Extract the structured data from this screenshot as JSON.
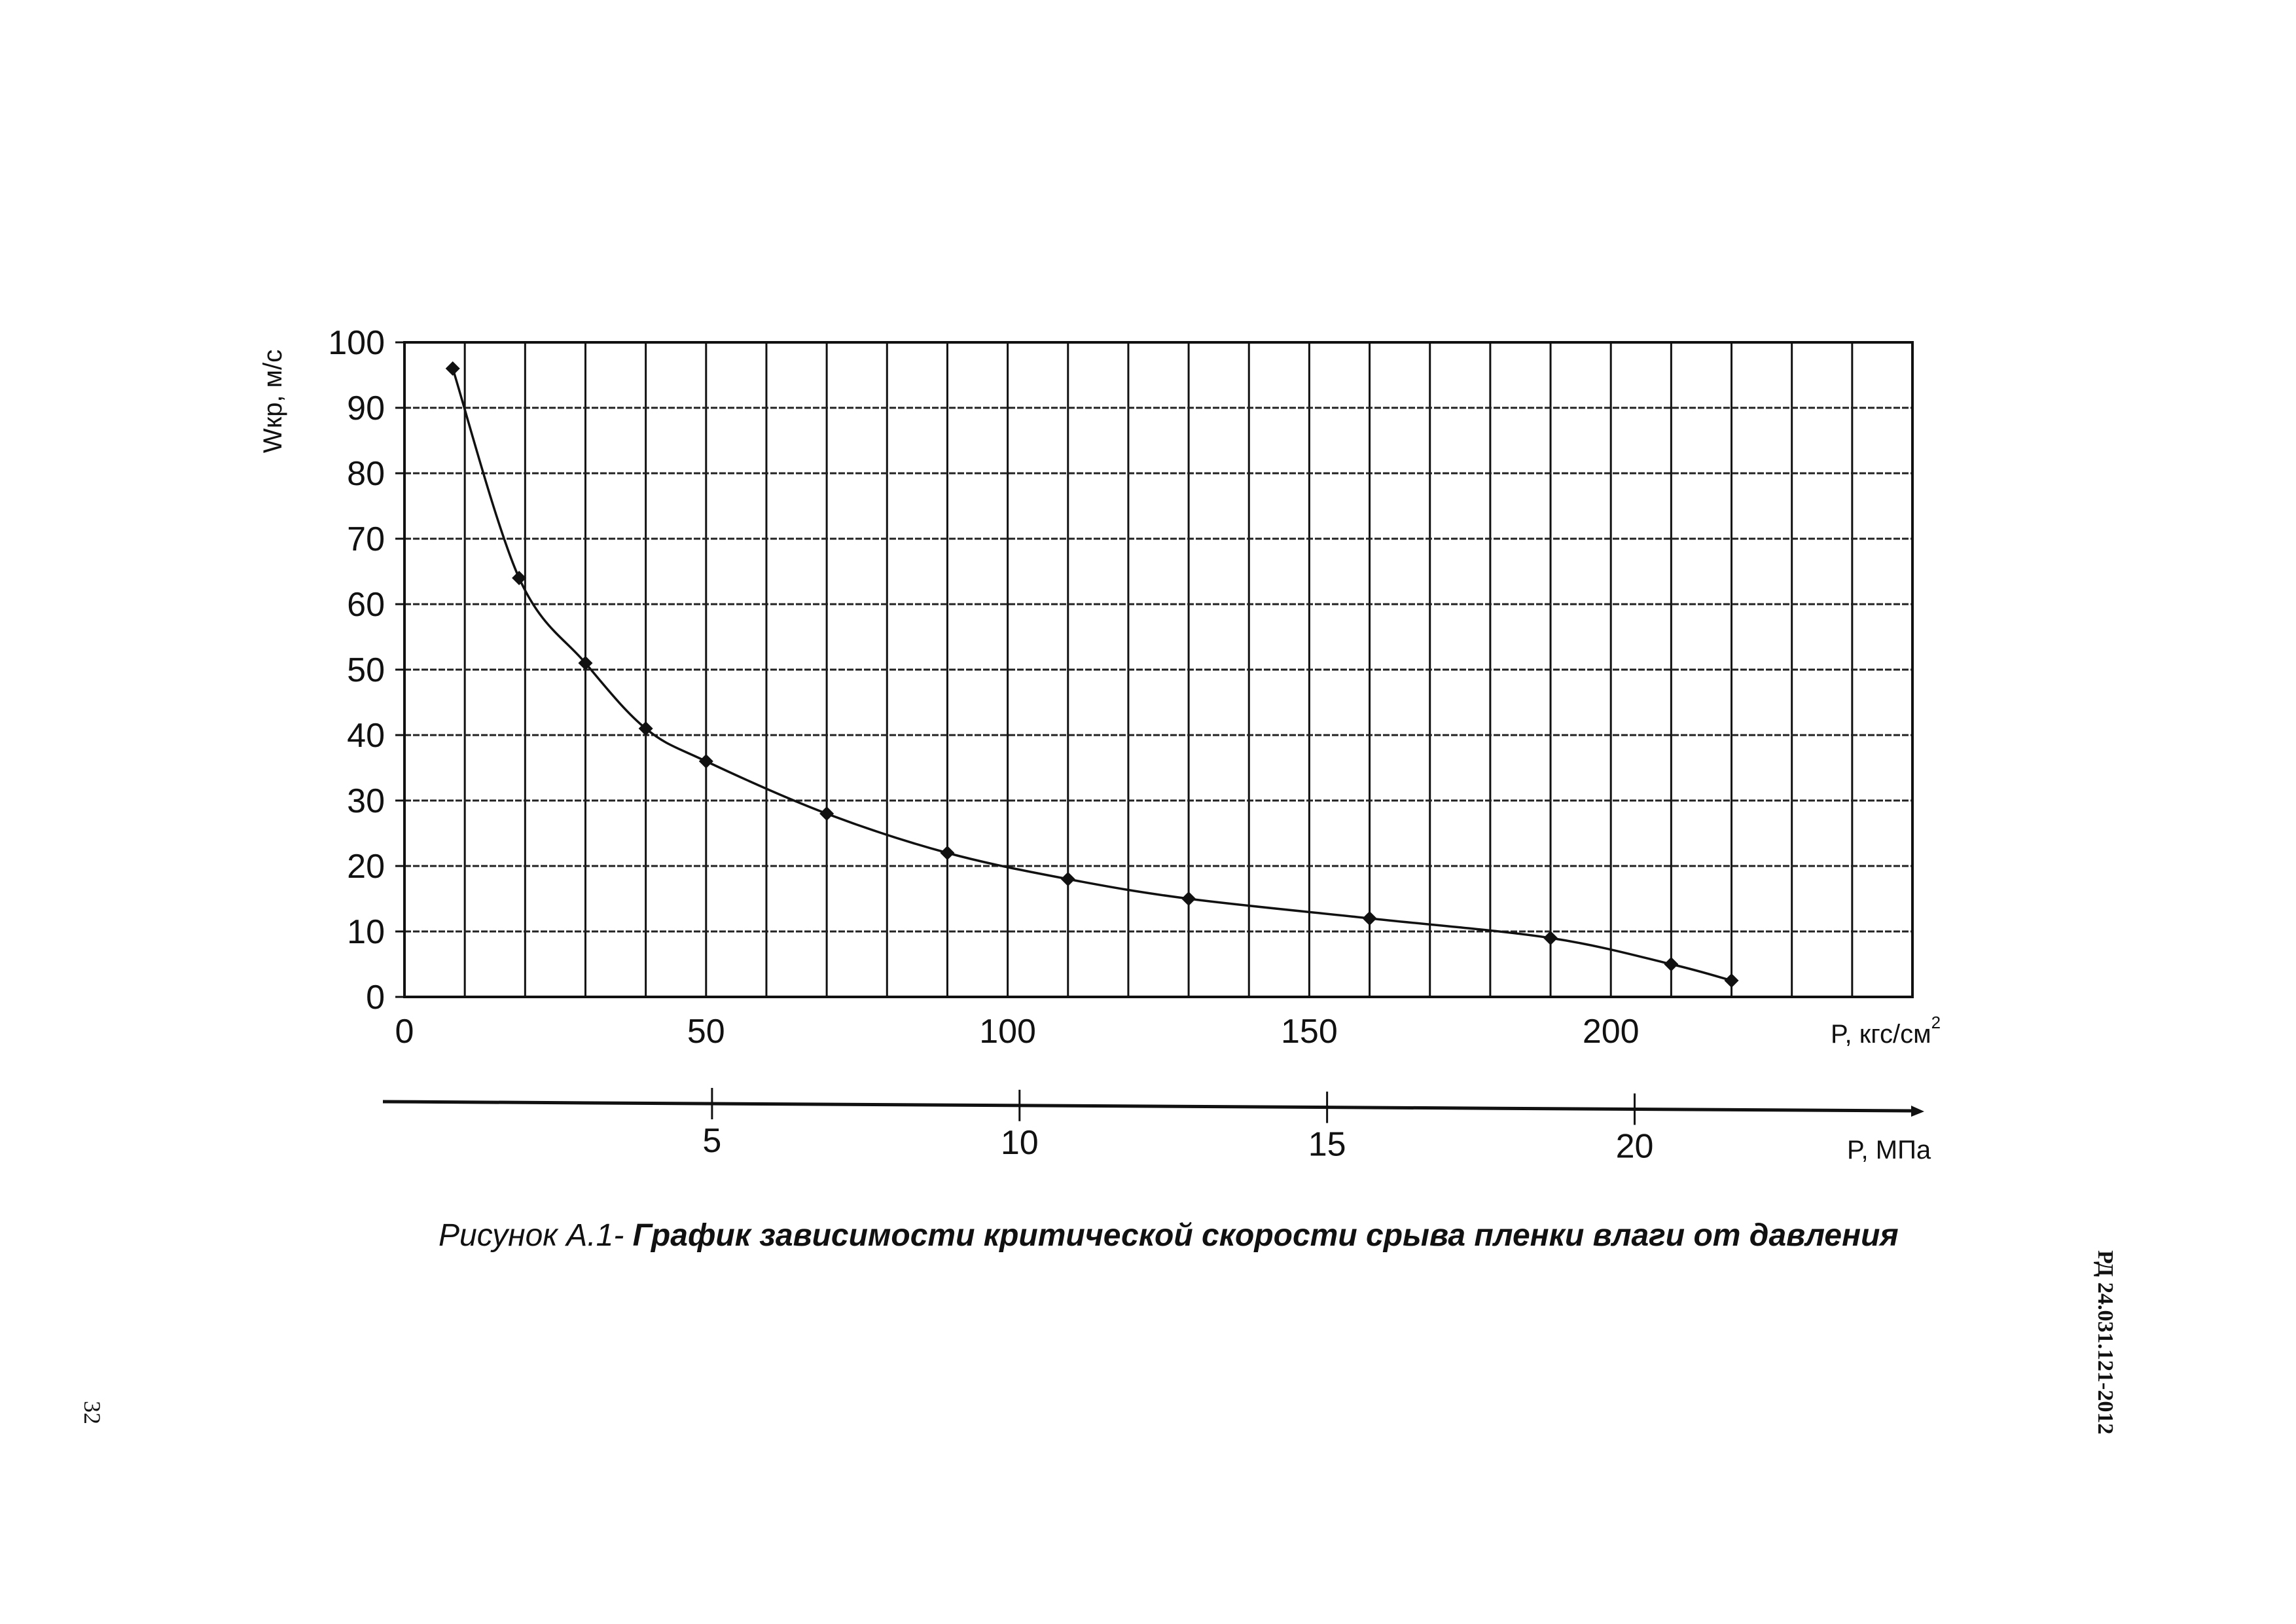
{
  "chart_data": {
    "type": "line",
    "ylabel": "Wкр, м/с",
    "xlabel": "P, кгс/см",
    "xlabel_superscript": "2",
    "secondary_xlabel": "P, МПа",
    "xlim": [
      0,
      250
    ],
    "ylim": [
      0,
      100
    ],
    "x_ticks": [
      0,
      50,
      100,
      150,
      200
    ],
    "y_ticks": [
      0,
      10,
      20,
      30,
      40,
      50,
      60,
      70,
      80,
      90,
      100
    ],
    "secondary_x_ticks": [
      5,
      10,
      15,
      20
    ],
    "grid": true,
    "series": [
      {
        "marker": "diamond",
        "x": [
          8,
          19,
          30,
          40,
          50,
          70,
          90,
          110,
          130,
          160,
          190,
          210,
          220
        ],
        "y": [
          96,
          64,
          51,
          41,
          36,
          28,
          22,
          18,
          15,
          12,
          9,
          5,
          2.5
        ]
      }
    ]
  },
  "caption": {
    "prefix": "Рисунок А.1-",
    "title": "График зависимости критической скорости срыва пленки влаги от давления"
  },
  "doc_code": "РД 24.031.121-2012",
  "page_number": "32"
}
